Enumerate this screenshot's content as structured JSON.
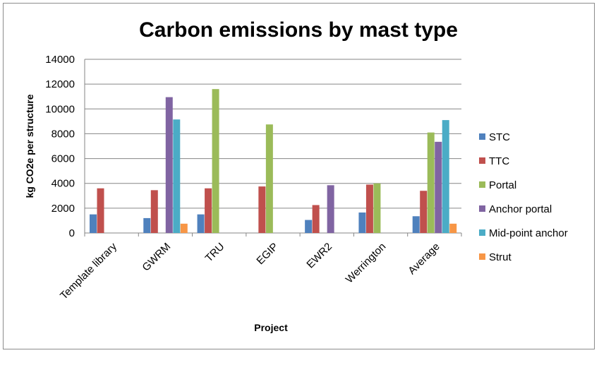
{
  "chart_data": {
    "type": "bar",
    "title": "Carbon emissions by mast type",
    "xlabel": "Project",
    "ylabel": "kg CO2e per structure",
    "ylim": [
      0,
      14000
    ],
    "yticks": [
      0,
      2000,
      4000,
      6000,
      8000,
      10000,
      12000,
      14000
    ],
    "grid": true,
    "legend": "right",
    "categories": [
      "Template library",
      "GWRM",
      "TRU",
      "EGIP",
      "EWR2",
      "Werrington",
      "Average"
    ],
    "series": [
      {
        "name": "STC",
        "color": "#4f81bd",
        "values": [
          1500,
          1200,
          1500,
          null,
          1050,
          1650,
          1350
        ]
      },
      {
        "name": "TTC",
        "color": "#c0504d",
        "values": [
          3600,
          3450,
          3600,
          3750,
          2250,
          3900,
          3400
        ]
      },
      {
        "name": "Portal",
        "color": "#9bbb59",
        "values": [
          null,
          null,
          11600,
          8750,
          null,
          4000,
          8100
        ]
      },
      {
        "name": "Anchor portal",
        "color": "#8064a2",
        "values": [
          null,
          10950,
          null,
          null,
          3850,
          null,
          7350
        ]
      },
      {
        "name": "Mid-point anchor",
        "color": "#4bacc6",
        "values": [
          null,
          9150,
          null,
          null,
          null,
          null,
          9100
        ]
      },
      {
        "name": "Strut",
        "color": "#f79646",
        "values": [
          null,
          750,
          null,
          null,
          null,
          null,
          750
        ]
      }
    ]
  }
}
